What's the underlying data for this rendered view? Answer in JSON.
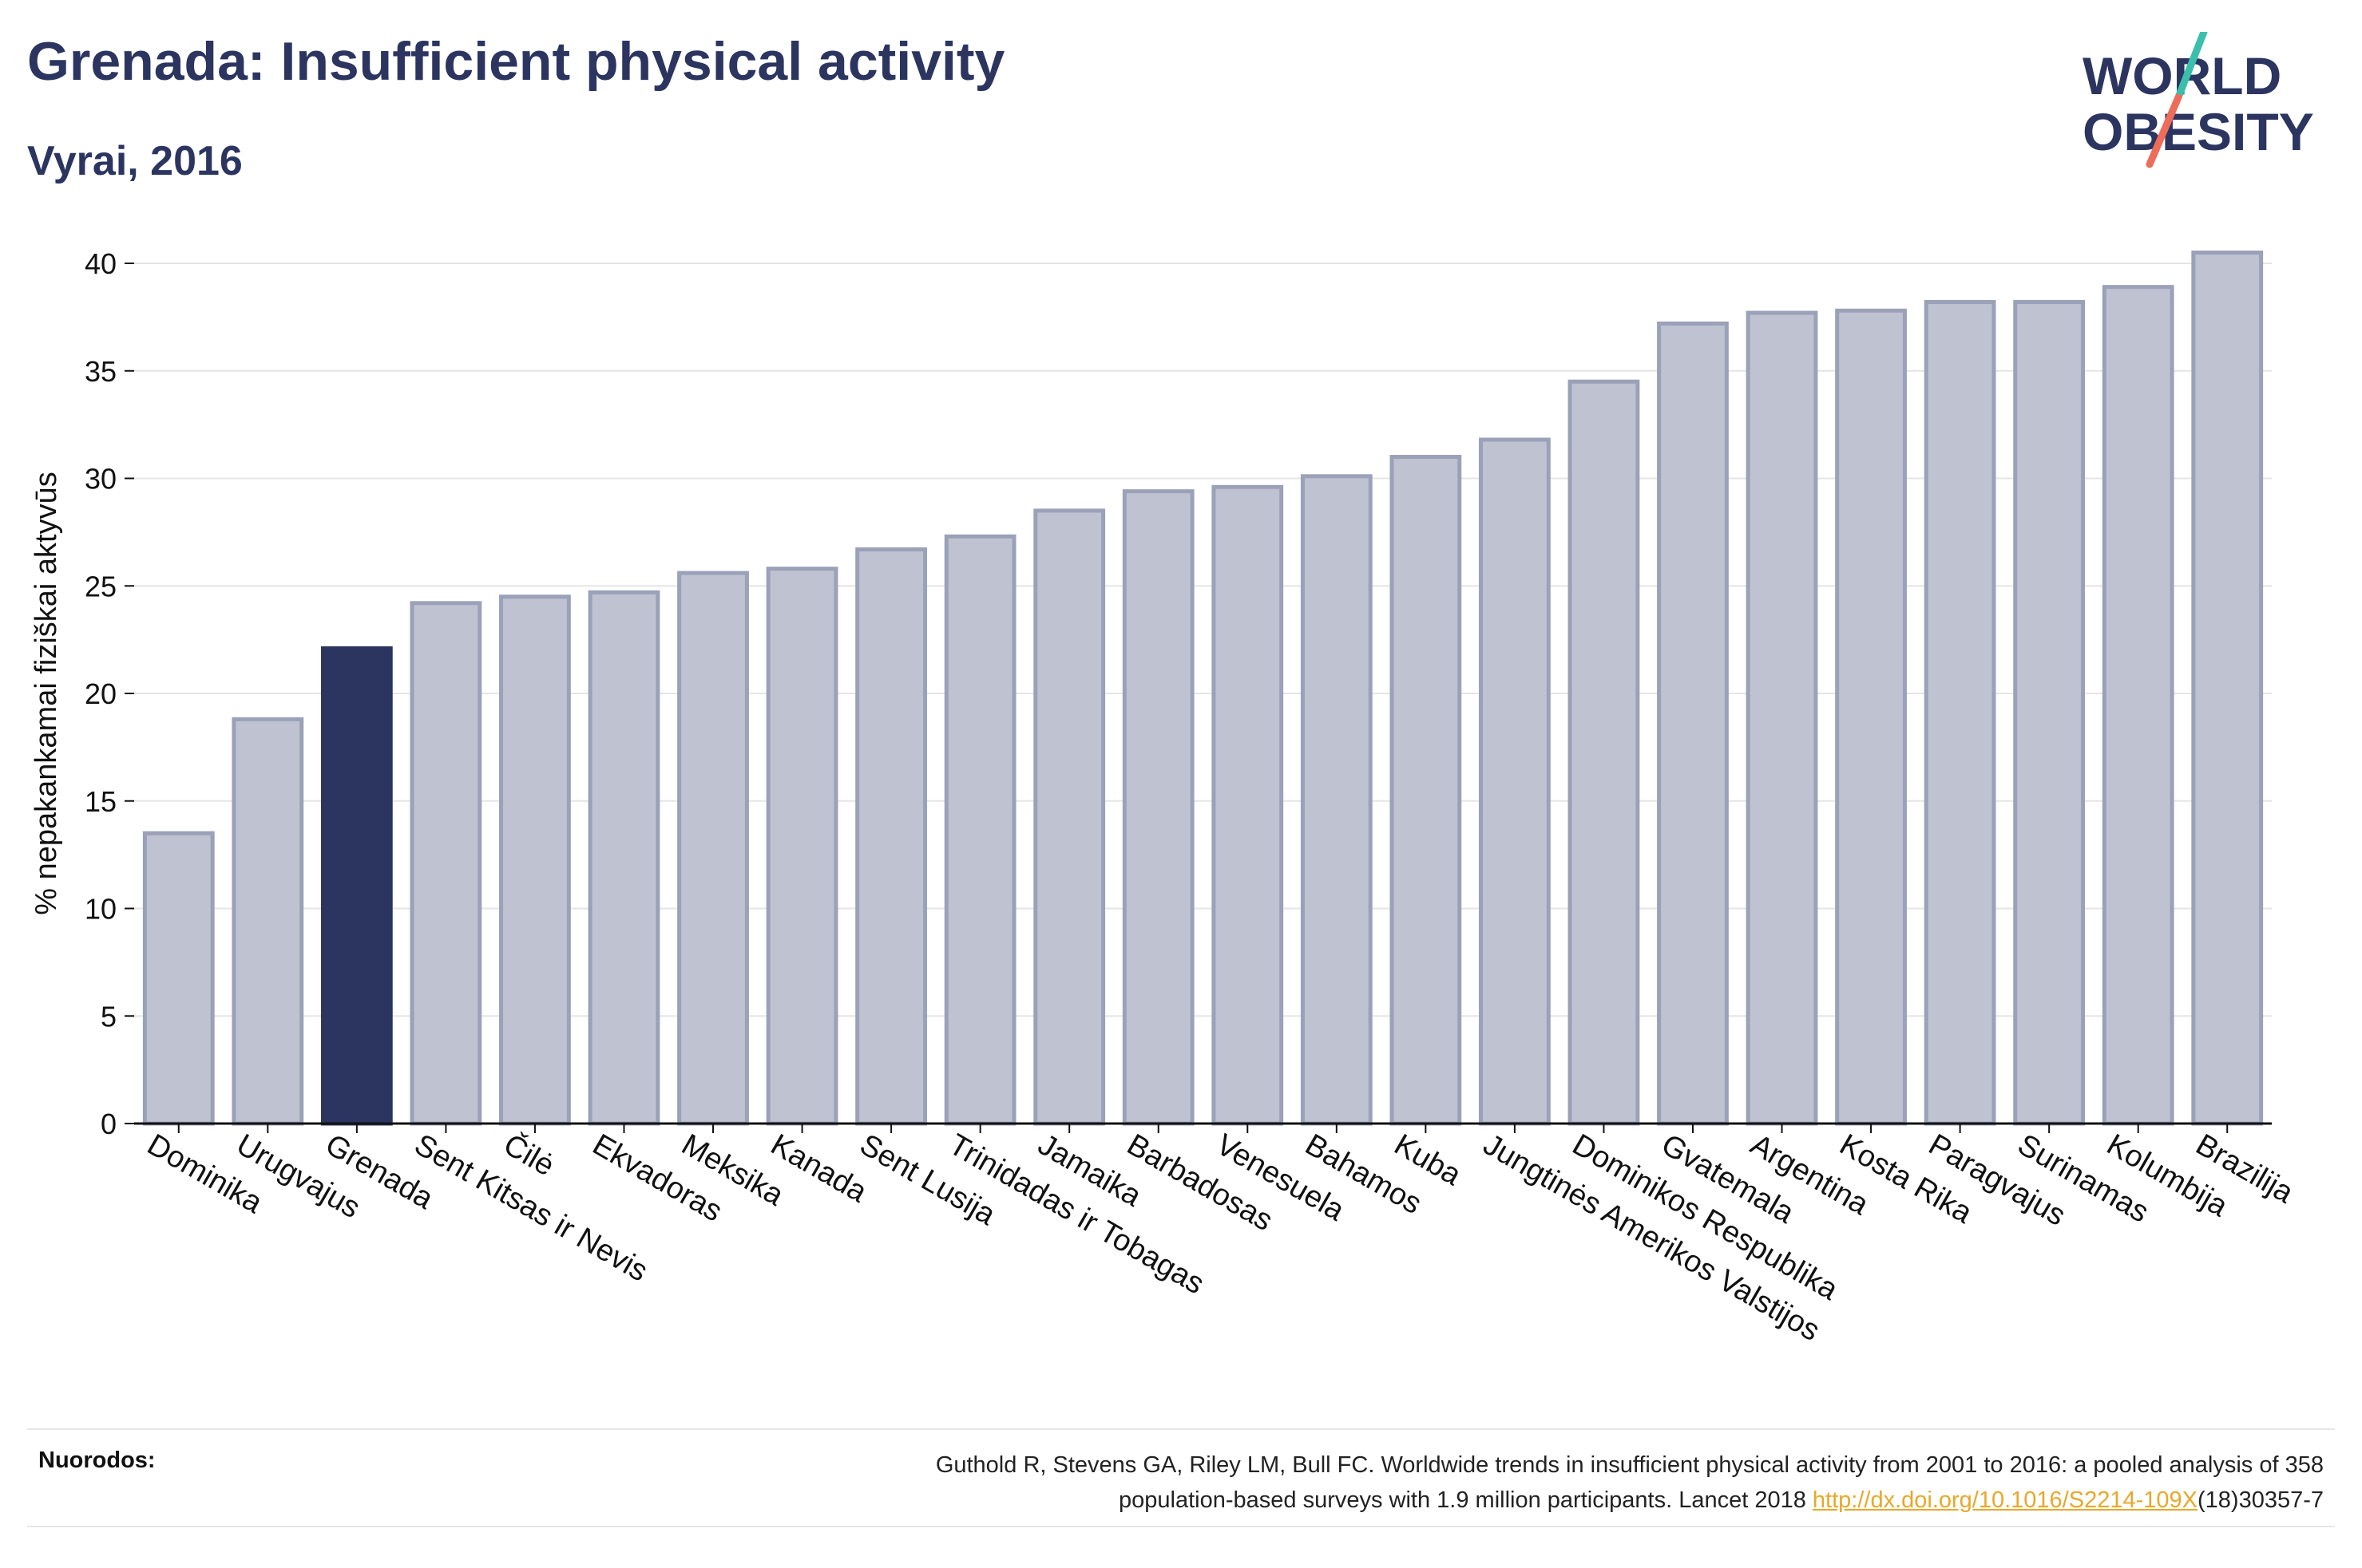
{
  "header": {
    "title": "Grenada: Insufficient physical activity",
    "subtitle": "Vyrai, 2016"
  },
  "logo": {
    "line1": "WORLD",
    "line2": "OBESITY"
  },
  "colors": {
    "highlight": "#2b3560",
    "bar": "#bfc3d1",
    "bar_edge": "#9aa1b8",
    "axis": "#111111",
    "grid": "#e5e5e5"
  },
  "chart_data": {
    "type": "bar",
    "title": "Grenada: Insufficient physical activity",
    "subtitle": "Vyrai, 2016",
    "xlabel": "",
    "ylabel": "% nepakankamai fiziškai aktyvūs",
    "ylim": [
      0,
      42
    ],
    "yticks": [
      0,
      5,
      10,
      15,
      20,
      25,
      30,
      35,
      40
    ],
    "grid": true,
    "highlight": "Grenada",
    "categories": [
      "Dominika",
      "Urugvajus",
      "Grenada",
      "Sent Kitsas ir Nevis",
      "Čilė",
      "Ekvadoras",
      "Meksika",
      "Kanada",
      "Sent Lusija",
      "Trinidadas ir Tobagas",
      "Jamaika",
      "Barbadosas",
      "Venesuela",
      "Bahamos",
      "Kuba",
      "Jungtinės Amerikos Valstijos",
      "Dominikos Respublika",
      "Gvatemala",
      "Argentina",
      "Kosta Rika",
      "Paragvajus",
      "Surinamas",
      "Kolumbija",
      "Brazilija"
    ],
    "values": [
      13.5,
      18.8,
      22.1,
      24.2,
      24.5,
      24.7,
      25.6,
      25.8,
      26.7,
      27.3,
      28.5,
      29.4,
      29.6,
      30.1,
      31.0,
      31.8,
      34.5,
      37.2,
      37.7,
      37.8,
      38.2,
      38.2,
      38.9,
      40.5
    ]
  },
  "footer": {
    "label": "Nuorodos:",
    "line1": "Guthold R, Stevens GA, Riley LM, Bull FC. Worldwide trends in insufficient physical activity from 2001 to 2016: a pooled analysis of 358",
    "line2_pre": "population-based surveys with 1.9 million participants. Lancet 2018 ",
    "link": "http://dx.doi.org/10.1016/S2214-109X",
    "line2_post": "(18)30357-7"
  }
}
